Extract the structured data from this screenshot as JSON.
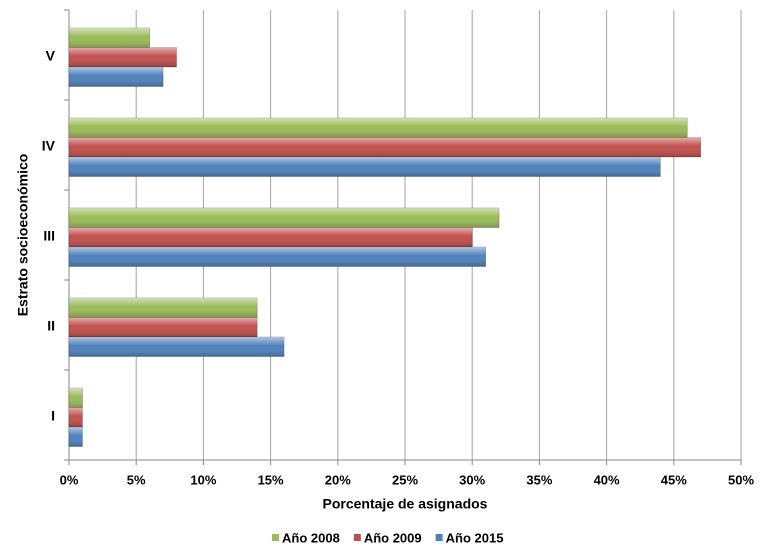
{
  "chart_data": {
    "type": "bar",
    "orientation": "horizontal",
    "x_label": "Porcentaje de asignados",
    "y_label": "Estrato socioeconómico",
    "categories": [
      "I",
      "II",
      "III",
      "IV",
      "V"
    ],
    "series": [
      {
        "name": "Año 2008",
        "color": "#9bbb59",
        "values": [
          1,
          14,
          32,
          46,
          6
        ]
      },
      {
        "name": "Año 2009",
        "color": "#c0504d",
        "values": [
          1,
          14,
          30,
          47,
          8
        ]
      },
      {
        "name": "Año 2015",
        "color": "#4f81bd",
        "values": [
          1,
          16,
          31,
          44,
          7
        ]
      }
    ],
    "xlim": [
      0,
      50
    ],
    "xticks": [
      {
        "value": 0,
        "label": "0%"
      },
      {
        "value": 5,
        "label": "5%"
      },
      {
        "value": 10,
        "label": "10%"
      },
      {
        "value": 15,
        "label": "15%"
      },
      {
        "value": 20,
        "label": "20%"
      },
      {
        "value": 25,
        "label": "25%"
      },
      {
        "value": 30,
        "label": "30%"
      },
      {
        "value": 35,
        "label": "35%"
      },
      {
        "value": 40,
        "label": "40%"
      },
      {
        "value": 45,
        "label": "45%"
      },
      {
        "value": 50,
        "label": "50%"
      }
    ],
    "grid": true,
    "legend": "bottom"
  }
}
